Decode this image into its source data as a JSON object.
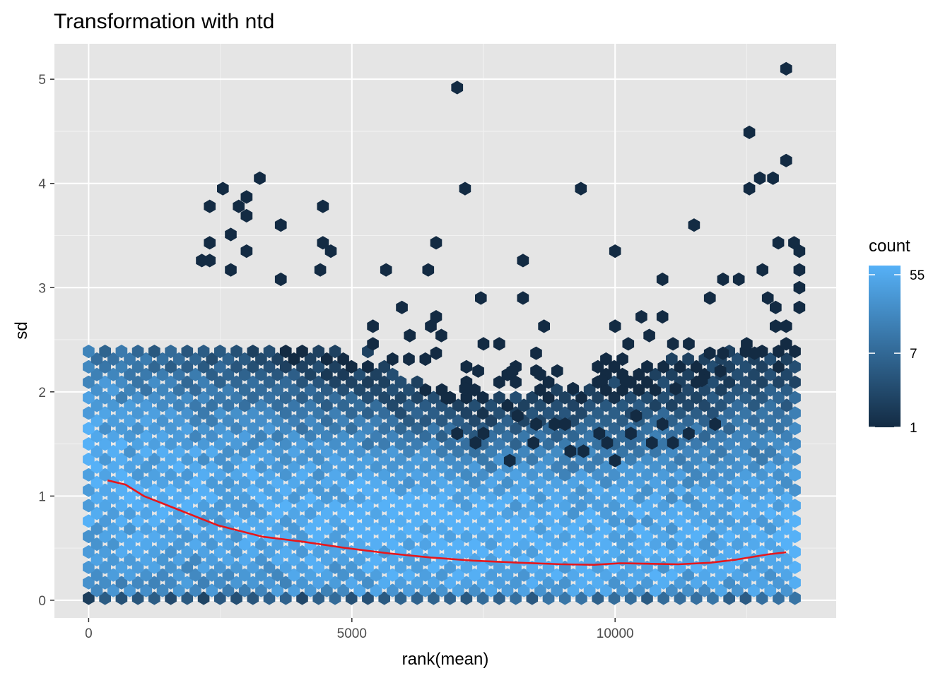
{
  "chart_data": {
    "type": "hexbin",
    "title": "Transformation with ntd",
    "xlabel": "rank(mean)",
    "ylabel": "sd",
    "xlim": [
      -650,
      14200
    ],
    "ylim": [
      -0.17,
      5.34
    ],
    "x_ticks": [
      0,
      5000,
      10000
    ],
    "x_tick_labels": [
      "0",
      "5000",
      "10000"
    ],
    "y_ticks": [
      0,
      1,
      2,
      3,
      4,
      5
    ],
    "y_tick_labels": [
      "0",
      "1",
      "2",
      "3",
      "4",
      "5"
    ],
    "grid": true,
    "panel_background": "#e5e5e5",
    "legend": {
      "title": "count",
      "placement": "right",
      "scale": "log",
      "breaks": [
        55,
        7,
        1
      ],
      "break_labels": [
        "55",
        "7",
        "1"
      ],
      "range": [
        1,
        70
      ],
      "color_low": "#132b43",
      "color_high": "#56b1f7"
    },
    "trend_line": {
      "color": "#e8171b",
      "x": [
        360,
        700,
        1050,
        1700,
        2450,
        3300,
        4100,
        4900,
        5700,
        6500,
        7300,
        8200,
        9000,
        9600,
        10100,
        10700,
        11200,
        11800,
        12300,
        12900,
        13250
      ],
      "y": [
        1.15,
        1.11,
        1.0,
        0.87,
        0.72,
        0.61,
        0.56,
        0.5,
        0.45,
        0.41,
        0.38,
        0.36,
        0.345,
        0.34,
        0.355,
        0.35,
        0.345,
        0.36,
        0.39,
        0.44,
        0.46
      ]
    },
    "outlier_points": [
      {
        "x": 7000,
        "y": 4.92
      },
      {
        "x": 13250,
        "y": 5.1
      },
      {
        "x": 12550,
        "y": 4.49
      },
      {
        "x": 13250,
        "y": 4.22
      },
      {
        "x": 12550,
        "y": 3.95
      },
      {
        "x": 12750,
        "y": 4.05
      },
      {
        "x": 13000,
        "y": 4.05
      },
      {
        "x": 3250,
        "y": 4.05
      },
      {
        "x": 2550,
        "y": 3.95
      },
      {
        "x": 7150,
        "y": 3.95
      },
      {
        "x": 9350,
        "y": 3.95
      },
      {
        "x": 2850,
        "y": 3.78
      },
      {
        "x": 2300,
        "y": 3.78
      },
      {
        "x": 3000,
        "y": 3.87
      },
      {
        "x": 4450,
        "y": 3.78
      },
      {
        "x": 3000,
        "y": 3.69
      },
      {
        "x": 3650,
        "y": 3.6
      },
      {
        "x": 11500,
        "y": 3.6
      },
      {
        "x": 2700,
        "y": 3.51
      },
      {
        "x": 6600,
        "y": 3.43
      },
      {
        "x": 4450,
        "y": 3.43
      },
      {
        "x": 2300,
        "y": 3.43
      },
      {
        "x": 4600,
        "y": 3.35
      },
      {
        "x": 10000,
        "y": 3.35
      },
      {
        "x": 3000,
        "y": 3.35
      },
      {
        "x": 13100,
        "y": 3.43
      },
      {
        "x": 13400,
        "y": 3.43
      },
      {
        "x": 13500,
        "y": 3.35
      },
      {
        "x": 8250,
        "y": 3.26
      },
      {
        "x": 2150,
        "y": 3.26
      },
      {
        "x": 2300,
        "y": 3.26
      },
      {
        "x": 5650,
        "y": 3.17
      },
      {
        "x": 6450,
        "y": 3.17
      },
      {
        "x": 4400,
        "y": 3.17
      },
      {
        "x": 2700,
        "y": 3.17
      },
      {
        "x": 12800,
        "y": 3.17
      },
      {
        "x": 13500,
        "y": 3.17
      },
      {
        "x": 3650,
        "y": 3.08
      },
      {
        "x": 10900,
        "y": 3.08
      },
      {
        "x": 12050,
        "y": 3.08
      },
      {
        "x": 12350,
        "y": 3.08
      },
      {
        "x": 13500,
        "y": 3.0
      },
      {
        "x": 7450,
        "y": 2.9
      },
      {
        "x": 8250,
        "y": 2.9
      },
      {
        "x": 11800,
        "y": 2.9
      },
      {
        "x": 12900,
        "y": 2.9
      },
      {
        "x": 5950,
        "y": 2.81
      },
      {
        "x": 13050,
        "y": 2.81
      },
      {
        "x": 13500,
        "y": 2.81
      },
      {
        "x": 6600,
        "y": 2.72
      },
      {
        "x": 10500,
        "y": 2.72
      },
      {
        "x": 10900,
        "y": 2.72
      },
      {
        "x": 6500,
        "y": 2.63
      },
      {
        "x": 8650,
        "y": 2.63
      },
      {
        "x": 10000,
        "y": 2.63
      },
      {
        "x": 13050,
        "y": 2.63
      },
      {
        "x": 13250,
        "y": 2.63
      },
      {
        "x": 5400,
        "y": 2.63
      },
      {
        "x": 6100,
        "y": 2.54
      },
      {
        "x": 6700,
        "y": 2.54
      },
      {
        "x": 10650,
        "y": 2.54
      },
      {
        "x": 12500,
        "y": 2.46
      },
      {
        "x": 13250,
        "y": 2.46
      },
      {
        "x": 7500,
        "y": 2.46
      },
      {
        "x": 7800,
        "y": 2.46
      },
      {
        "x": 10250,
        "y": 2.46
      },
      {
        "x": 11100,
        "y": 2.46
      },
      {
        "x": 11400,
        "y": 2.46
      },
      {
        "x": 5400,
        "y": 2.46
      },
      {
        "x": 6600,
        "y": 2.37
      },
      {
        "x": 8500,
        "y": 2.37
      },
      {
        "x": 11800,
        "y": 2.37
      },
      {
        "x": 12050,
        "y": 2.37
      },
      {
        "x": 12650,
        "y": 2.37
      },
      {
        "x": 7400,
        "y": 2.2
      },
      {
        "x": 8500,
        "y": 2.2
      },
      {
        "x": 8900,
        "y": 2.2
      },
      {
        "x": 10200,
        "y": 2.11
      },
      {
        "x": 9750,
        "y": 2.11
      },
      {
        "x": 11650,
        "y": 2.11
      },
      {
        "x": 12000,
        "y": 2.2
      },
      {
        "x": 8050,
        "y": 2.2
      },
      {
        "x": 7150,
        "y": 2.03
      },
      {
        "x": 9200,
        "y": 2.03
      },
      {
        "x": 11150,
        "y": 2.03
      },
      {
        "x": 6800,
        "y": 1.94
      },
      {
        "x": 8150,
        "y": 1.77
      },
      {
        "x": 8500,
        "y": 1.69
      },
      {
        "x": 8850,
        "y": 1.69
      },
      {
        "x": 9050,
        "y": 1.69
      },
      {
        "x": 10400,
        "y": 1.77
      },
      {
        "x": 10900,
        "y": 1.69
      },
      {
        "x": 7000,
        "y": 1.6
      },
      {
        "x": 7500,
        "y": 1.6
      },
      {
        "x": 9700,
        "y": 1.6
      },
      {
        "x": 10300,
        "y": 1.6
      },
      {
        "x": 11400,
        "y": 1.6
      },
      {
        "x": 11900,
        "y": 1.69
      },
      {
        "x": 8450,
        "y": 1.51
      },
      {
        "x": 9850,
        "y": 1.51
      },
      {
        "x": 10700,
        "y": 1.51
      },
      {
        "x": 11100,
        "y": 1.51
      },
      {
        "x": 7350,
        "y": 1.51
      },
      {
        "x": 9150,
        "y": 1.43
      },
      {
        "x": 9400,
        "y": 1.43
      },
      {
        "x": 8000,
        "y": 1.34
      },
      {
        "x": 10000,
        "y": 1.34
      }
    ]
  }
}
